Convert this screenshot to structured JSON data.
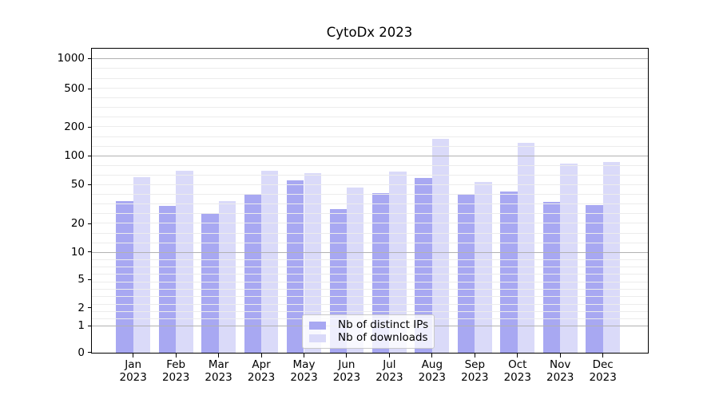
{
  "chart_data": {
    "type": "bar",
    "title": "CytoDx 2023",
    "categories": [
      "Jan",
      "Feb",
      "Mar",
      "Apr",
      "May",
      "Jun",
      "Jul",
      "Aug",
      "Sep",
      "Oct",
      "Nov",
      "Dec"
    ],
    "year_label": "2023",
    "series": [
      {
        "name": "Nb of distinct IPs",
        "color": "#a8a8f2",
        "values": [
          34,
          30,
          25,
          39,
          55,
          28,
          41,
          58,
          39,
          42,
          33,
          31
        ]
      },
      {
        "name": "Nb of downloads",
        "color": "#dadaf9",
        "values": [
          59,
          70,
          34,
          70,
          65,
          46,
          68,
          150,
          53,
          135,
          82,
          85
        ]
      }
    ],
    "yticks": [
      0,
      1,
      2,
      5,
      10,
      20,
      50,
      100,
      200,
      500,
      1000
    ],
    "yaxis_scale": "symlog",
    "ylim": [
      0,
      1280
    ],
    "grid": "both",
    "gridlines_above_bars": true,
    "legend_position": "lower center",
    "colors": {
      "major_grid": "#b2b2b2",
      "minor_grid": "#ececec",
      "spine": "#000000",
      "text": "#000000"
    }
  }
}
